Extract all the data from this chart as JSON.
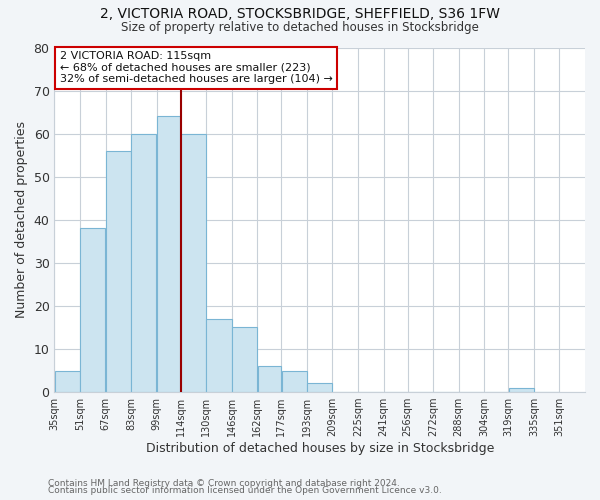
{
  "title": "2, VICTORIA ROAD, STOCKSBRIDGE, SHEFFIELD, S36 1FW",
  "subtitle": "Size of property relative to detached houses in Stocksbridge",
  "xlabel": "Distribution of detached houses by size in Stocksbridge",
  "ylabel": "Number of detached properties",
  "bar_left_edges": [
    35,
    51,
    67,
    83,
    99,
    114,
    130,
    146,
    162,
    177,
    193,
    209,
    225,
    241,
    256,
    272,
    288,
    304,
    319,
    335
  ],
  "bar_heights": [
    5,
    38,
    56,
    60,
    64,
    60,
    17,
    15,
    6,
    5,
    2,
    0,
    0,
    0,
    0,
    0,
    0,
    0,
    1,
    0
  ],
  "bar_widths": [
    16,
    16,
    16,
    16,
    15,
    16,
    16,
    16,
    15,
    16,
    16,
    16,
    16,
    15,
    16,
    16,
    16,
    15,
    16,
    16
  ],
  "tick_labels": [
    "35sqm",
    "51sqm",
    "67sqm",
    "83sqm",
    "99sqm",
    "114sqm",
    "130sqm",
    "146sqm",
    "162sqm",
    "177sqm",
    "193sqm",
    "209sqm",
    "225sqm",
    "241sqm",
    "256sqm",
    "272sqm",
    "288sqm",
    "304sqm",
    "319sqm",
    "335sqm",
    "351sqm"
  ],
  "tick_positions": [
    35,
    51,
    67,
    83,
    99,
    114,
    130,
    146,
    162,
    177,
    193,
    209,
    225,
    241,
    256,
    272,
    288,
    304,
    319,
    335,
    351
  ],
  "bar_color": "#cce4f0",
  "bar_edge_color": "#7ab5d4",
  "marker_x": 114,
  "marker_color": "#990000",
  "ylim": [
    0,
    80
  ],
  "xlim": [
    35,
    367
  ],
  "annotation_text": "2 VICTORIA ROAD: 115sqm\n← 68% of detached houses are smaller (223)\n32% of semi-detached houses are larger (104) →",
  "annotation_box_color": "#ffffff",
  "annotation_box_edge": "#cc0000",
  "footer1": "Contains HM Land Registry data © Crown copyright and database right 2024.",
  "footer2": "Contains public sector information licensed under the Open Government Licence v3.0.",
  "background_color": "#f2f5f8",
  "plot_bg_color": "#ffffff",
  "grid_color": "#c8d0d8"
}
